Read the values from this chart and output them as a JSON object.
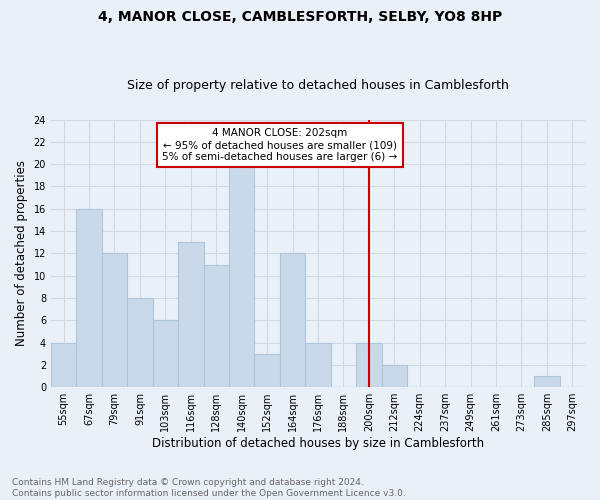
{
  "title": "4, MANOR CLOSE, CAMBLESFORTH, SELBY, YO8 8HP",
  "subtitle": "Size of property relative to detached houses in Camblesforth",
  "xlabel": "Distribution of detached houses by size in Camblesforth",
  "ylabel": "Number of detached properties",
  "footer_line1": "Contains HM Land Registry data © Crown copyright and database right 2024.",
  "footer_line2": "Contains public sector information licensed under the Open Government Licence v3.0.",
  "bar_labels": [
    "55sqm",
    "67sqm",
    "79sqm",
    "91sqm",
    "103sqm",
    "116sqm",
    "128sqm",
    "140sqm",
    "152sqm",
    "164sqm",
    "176sqm",
    "188sqm",
    "200sqm",
    "212sqm",
    "224sqm",
    "237sqm",
    "249sqm",
    "261sqm",
    "273sqm",
    "285sqm",
    "297sqm"
  ],
  "bar_values": [
    4,
    16,
    12,
    8,
    6,
    13,
    11,
    20,
    3,
    12,
    4,
    0,
    4,
    2,
    0,
    0,
    0,
    0,
    0,
    1,
    0
  ],
  "bar_color": "#c9d9ea",
  "bar_edgecolor": "#aec6d8",
  "bar_linewidth": 0.8,
  "vline_x": 12,
  "vline_color": "#cc0000",
  "ylim": [
    0,
    24
  ],
  "yticks": [
    0,
    2,
    4,
    6,
    8,
    10,
    12,
    14,
    16,
    18,
    20,
    22,
    24
  ],
  "grid_color": "#d0d8e4",
  "annotation_text": "4 MANOR CLOSE: 202sqm\n← 95% of detached houses are smaller (109)\n5% of semi-detached houses are larger (6) →",
  "annotation_box_color": "#ffffff",
  "annotation_box_edgecolor": "#cc0000",
  "annotation_fontsize": 7.5,
  "title_fontsize": 10,
  "subtitle_fontsize": 9,
  "xlabel_fontsize": 8.5,
  "ylabel_fontsize": 8.5,
  "tick_fontsize": 7,
  "footer_fontsize": 6.5,
  "background_color": "#eaf0f8"
}
